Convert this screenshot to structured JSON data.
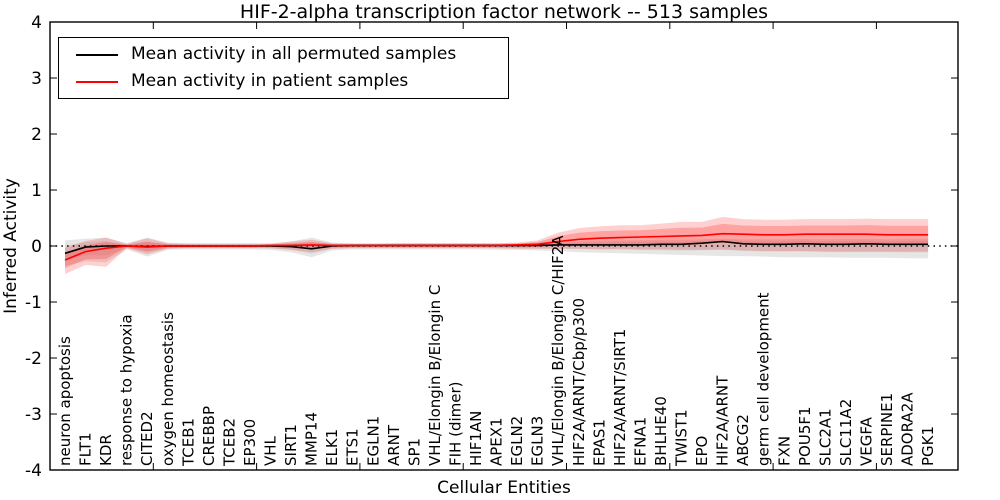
{
  "chart_data": {
    "type": "line",
    "title": "HIF-2-alpha transcription factor network -- 513 samples",
    "xlabel": "Cellular Entities",
    "ylabel": "Inferred Activity",
    "ylim": [
      -4,
      4
    ],
    "yticks": [
      -4,
      -3,
      -2,
      -1,
      0,
      1,
      2,
      3,
      4
    ],
    "grid": false,
    "zero_line": {
      "value": 0,
      "style": "dotted",
      "color": "#000000"
    },
    "legend": {
      "position": "upper-left",
      "entries": [
        {
          "label": "Mean activity in all permuted samples",
          "color": "#000000"
        },
        {
          "label": "Mean activity in patient samples",
          "color": "#ff0000"
        }
      ]
    },
    "categories": [
      "neuron apoptosis",
      "FLT1",
      "KDR",
      "response to hypoxia",
      "CITED2",
      "oxygen homeostasis",
      "TCEB1",
      "CREBBP",
      "TCEB2",
      "EP300",
      "VHL",
      "SIRT1",
      "MMP14",
      "ELK1",
      "ETS1",
      "EGLN1",
      "ARNT",
      "SP1",
      "VHL/Elongin B/Elongin C",
      "FIH (dimer)",
      "HIF1AN",
      "APEX1",
      "EGLN2",
      "EGLN3",
      "VHL/Elongin B/Elongin C/HIF2A",
      "HIF2A/ARNT/Cbp/p300",
      "EPAS1",
      "HIF2A/ARNT/SIRT1",
      "EFNA1",
      "BHLHE40",
      "TWIST1",
      "EPO",
      "HIF2A/ARNT",
      "ABCG2",
      "germ cell development",
      "FXN",
      "POU5F1",
      "SLC2A1",
      "SLC11A2",
      "VEGFA",
      "SERPINE1",
      "ADORA2A",
      "PGK1"
    ],
    "series": [
      {
        "name": "Mean activity in all permuted samples",
        "color": "#000000",
        "band_color": "#777777",
        "values": [
          -0.13,
          -0.02,
          0.0,
          0.0,
          -0.01,
          0.0,
          0.0,
          0.0,
          0.0,
          0.0,
          0.0,
          -0.01,
          -0.05,
          0.0,
          0.01,
          0.01,
          0.01,
          0.01,
          0.01,
          0.01,
          0.01,
          0.01,
          0.01,
          0.01,
          0.02,
          0.02,
          0.02,
          0.02,
          0.02,
          0.03,
          0.03,
          0.05,
          0.08,
          0.04,
          0.03,
          0.03,
          0.04,
          0.03,
          0.03,
          0.04,
          0.03,
          0.03,
          0.03
        ],
        "band_lo": [
          -0.35,
          -0.27,
          -0.29,
          -0.06,
          -0.19,
          -0.07,
          -0.06,
          -0.06,
          -0.06,
          -0.06,
          -0.07,
          -0.11,
          -0.2,
          -0.08,
          -0.06,
          -0.06,
          -0.06,
          -0.06,
          -0.06,
          -0.06,
          -0.06,
          -0.07,
          -0.07,
          -0.08,
          -0.09,
          -0.11,
          -0.12,
          -0.13,
          -0.14,
          -0.15,
          -0.16,
          -0.17,
          -0.18,
          -0.18,
          -0.19,
          -0.2,
          -0.2,
          -0.2,
          -0.21,
          -0.21,
          -0.21,
          -0.22,
          -0.22
        ],
        "band_hi": [
          0.1,
          0.13,
          0.15,
          0.05,
          0.15,
          0.06,
          0.05,
          0.05,
          0.05,
          0.05,
          0.05,
          0.08,
          0.15,
          0.06,
          0.05,
          0.05,
          0.05,
          0.05,
          0.05,
          0.05,
          0.05,
          0.05,
          0.05,
          0.06,
          0.07,
          0.08,
          0.09,
          0.1,
          0.1,
          0.11,
          0.11,
          0.12,
          0.13,
          0.12,
          0.12,
          0.12,
          0.13,
          0.12,
          0.13,
          0.13,
          0.12,
          0.13,
          0.13
        ]
      },
      {
        "name": "Mean activity in patient samples",
        "color": "#ff0000",
        "band_color": "#ff2a2a",
        "values": [
          -0.25,
          -0.1,
          -0.04,
          0.0,
          -0.02,
          0.0,
          0.0,
          0.0,
          0.0,
          0.0,
          0.01,
          0.01,
          0.02,
          0.01,
          0.01,
          0.01,
          0.01,
          0.01,
          0.01,
          0.01,
          0.01,
          0.01,
          0.02,
          0.03,
          0.08,
          0.12,
          0.14,
          0.15,
          0.16,
          0.17,
          0.18,
          0.19,
          0.22,
          0.21,
          0.2,
          0.2,
          0.21,
          0.21,
          0.21,
          0.21,
          0.2,
          0.2,
          0.2
        ],
        "band_lo": [
          -0.5,
          -0.34,
          -0.37,
          -0.04,
          -0.15,
          -0.05,
          -0.04,
          -0.04,
          -0.04,
          -0.04,
          -0.04,
          -0.07,
          -0.11,
          -0.05,
          -0.04,
          -0.04,
          -0.04,
          -0.04,
          -0.04,
          -0.04,
          -0.04,
          -0.04,
          -0.05,
          -0.05,
          -0.05,
          -0.05,
          -0.06,
          -0.05,
          -0.06,
          -0.06,
          -0.07,
          -0.07,
          -0.06,
          -0.08,
          -0.09,
          -0.09,
          -0.09,
          -0.1,
          -0.1,
          -0.1,
          -0.1,
          -0.1,
          -0.1
        ],
        "band_hi": [
          -0.03,
          0.09,
          0.15,
          0.04,
          0.14,
          0.05,
          0.04,
          0.04,
          0.04,
          0.04,
          0.04,
          0.08,
          0.11,
          0.05,
          0.04,
          0.04,
          0.05,
          0.05,
          0.05,
          0.05,
          0.05,
          0.05,
          0.06,
          0.1,
          0.24,
          0.32,
          0.35,
          0.37,
          0.37,
          0.4,
          0.43,
          0.43,
          0.52,
          0.48,
          0.47,
          0.47,
          0.48,
          0.48,
          0.48,
          0.49,
          0.48,
          0.48,
          0.48
        ]
      }
    ]
  }
}
